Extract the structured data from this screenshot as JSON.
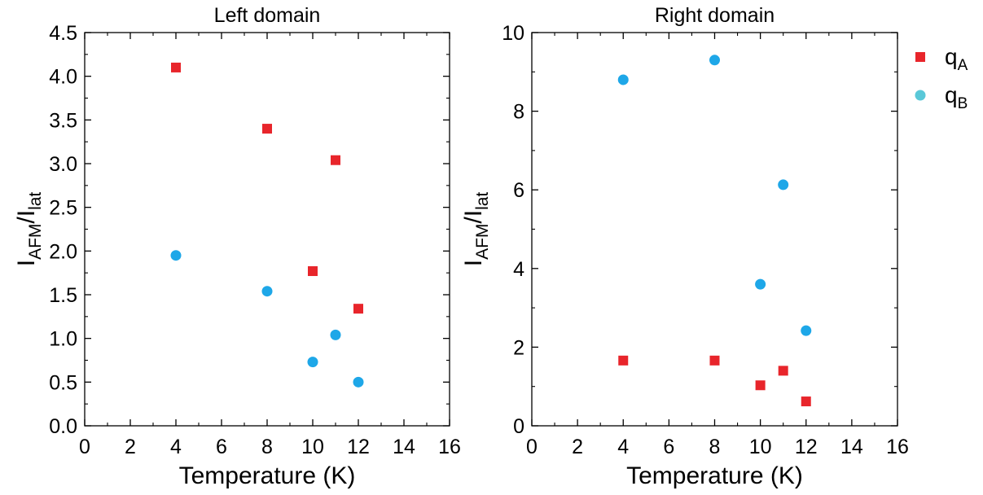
{
  "legend": {
    "placement": "right",
    "entries": [
      {
        "main": "q",
        "sub": "A",
        "marker": "square",
        "color": "#e8252b"
      },
      {
        "main": "q",
        "sub": "B",
        "marker": "circle",
        "color": "#5ac8d8"
      }
    ]
  },
  "chart_data": [
    {
      "type": "scatter",
      "title": "Left domain",
      "xlabel": "Temperature (K)",
      "ylabel": {
        "main": "I",
        "sub1": "AFM",
        "mid": "/I",
        "sub2": "lat"
      },
      "xlim": [
        0,
        16
      ],
      "ylim": [
        0,
        4.5
      ],
      "xticks": [
        "0",
        "2",
        "4",
        "6",
        "8",
        "10",
        "12",
        "14",
        "16"
      ],
      "yticks": [
        "0.0",
        "0.5",
        "1.0",
        "1.5",
        "2.0",
        "2.5",
        "3.0",
        "3.5",
        "4.0",
        "4.5"
      ],
      "grid": false,
      "series": [
        {
          "marker": "square",
          "color": "#e8252b",
          "x": [
            4,
            8,
            11,
            10,
            12
          ],
          "y": [
            4.1,
            3.4,
            3.04,
            1.77,
            1.34
          ]
        },
        {
          "marker": "circle",
          "color": "#1ea7e8",
          "x": [
            4,
            8,
            11,
            10,
            12
          ],
          "y": [
            1.95,
            1.54,
            1.04,
            0.73,
            0.5
          ]
        }
      ]
    },
    {
      "type": "scatter",
      "title": "Right domain",
      "xlabel": "Temperature (K)",
      "ylabel": {
        "main": "I",
        "sub1": "AFM",
        "mid": "/I",
        "sub2": "lat"
      },
      "xlim": [
        0,
        16
      ],
      "ylim": [
        0,
        10
      ],
      "xticks": [
        "0",
        "2",
        "4",
        "6",
        "8",
        "10",
        "12",
        "14",
        "16"
      ],
      "yticks": [
        "0",
        "2",
        "4",
        "6",
        "8",
        "10"
      ],
      "grid": false,
      "series": [
        {
          "marker": "square",
          "color": "#e8252b",
          "x": [
            4,
            8,
            10,
            11,
            12
          ],
          "y": [
            1.66,
            1.66,
            1.03,
            1.4,
            0.62
          ]
        },
        {
          "marker": "circle",
          "color": "#1ea7e8",
          "x": [
            4,
            8,
            11,
            10,
            12
          ],
          "y": [
            8.8,
            9.3,
            6.13,
            3.6,
            2.42
          ]
        }
      ]
    }
  ]
}
